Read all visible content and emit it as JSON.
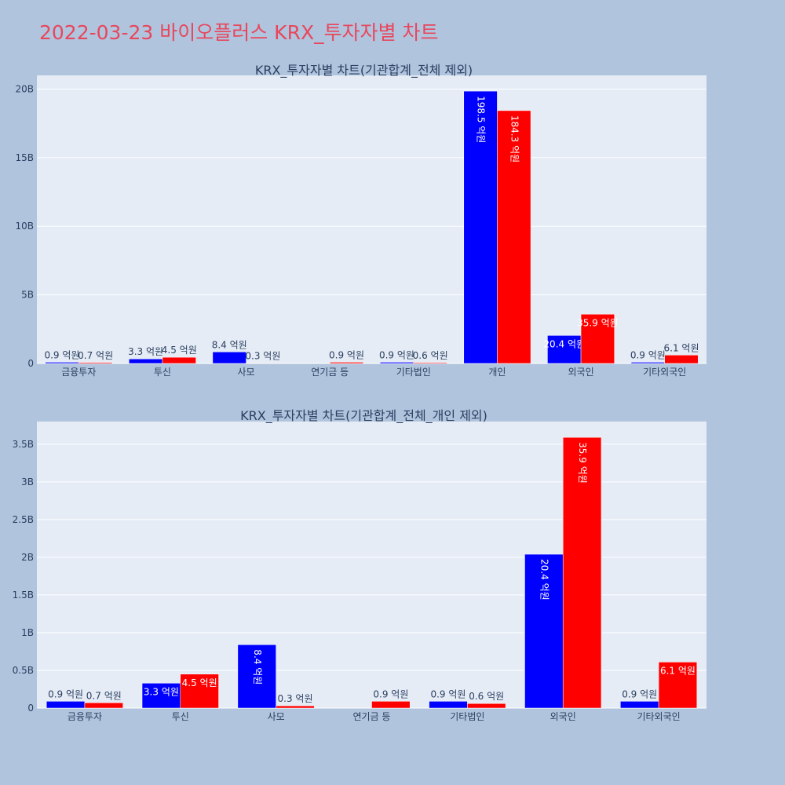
{
  "page_title": "2022-03-23 바이오플러스 KRX_투자자별 차트",
  "colors": {
    "buy": "#0000ff",
    "sell": "#ff0000",
    "plot_bg": "#e5ecf6",
    "paper_bg": "#b0c4de",
    "title": "#e8475c",
    "text": "#2a3f5f",
    "grid": "#ffffff"
  },
  "chart_data": [
    {
      "type": "bar",
      "title": "KRX_투자자별 차트(기관합계_전체 제외)",
      "categories": [
        "금융투자",
        "투신",
        "사모",
        "연기금 등",
        "기타법인",
        "개인",
        "외국인",
        "기타외국인"
      ],
      "series": [
        {
          "color": "#0000ff",
          "values": [
            0.09,
            0.33,
            0.84,
            0,
            0.09,
            19.85,
            2.04,
            0.09
          ],
          "labels": [
            "0.9 억원",
            "3.3 억원",
            "8.4 억원",
            "",
            "0.9 억원",
            "198.5 억원",
            "20.4 억원",
            "0.9 억원"
          ]
        },
        {
          "color": "#ff0000",
          "values": [
            0.07,
            0.45,
            0.03,
            0.09,
            0.06,
            18.43,
            3.59,
            0.61
          ],
          "labels": [
            "0.7 억원",
            "4.5 억원",
            "0.3 억원",
            "0.9 억원",
            "0.6 억원",
            "184.3 억원",
            "35.9 억원",
            "6.1 억원"
          ]
        }
      ],
      "ylim": [
        0,
        21
      ],
      "yticks": [
        0,
        5,
        10,
        15,
        20
      ],
      "ytick_labels": [
        "0",
        "5B",
        "10B",
        "15B",
        "20B"
      ],
      "grid": true,
      "legend": "none"
    },
    {
      "type": "bar",
      "title": "KRX_투자자별 차트(기관합계_전체_개인 제외)",
      "categories": [
        "금융투자",
        "투신",
        "사모",
        "연기금 등",
        "기타법인",
        "외국인",
        "기타외국인"
      ],
      "series": [
        {
          "color": "#0000ff",
          "values": [
            0.09,
            0.33,
            0.84,
            0,
            0.09,
            2.04,
            0.09
          ],
          "labels": [
            "0.9 억원",
            "3.3 억원",
            "8.4 억원",
            "",
            "0.9 억원",
            "20.4 억원",
            "0.9 억원"
          ]
        },
        {
          "color": "#ff0000",
          "values": [
            0.07,
            0.45,
            0.03,
            0.09,
            0.06,
            3.59,
            0.61
          ],
          "labels": [
            "0.7 억원",
            "4.5 억원",
            "0.3 억원",
            "0.9 억원",
            "0.6 억원",
            "35.9 억원",
            "6.1 억원"
          ]
        }
      ],
      "ylim": [
        0,
        3.8
      ],
      "yticks": [
        0,
        0.5,
        1,
        1.5,
        2,
        2.5,
        3,
        3.5
      ],
      "ytick_labels": [
        "0",
        "0.5B",
        "1B",
        "1.5B",
        "2B",
        "2.5B",
        "3B",
        "3.5B"
      ],
      "grid": true,
      "legend": "none"
    }
  ]
}
